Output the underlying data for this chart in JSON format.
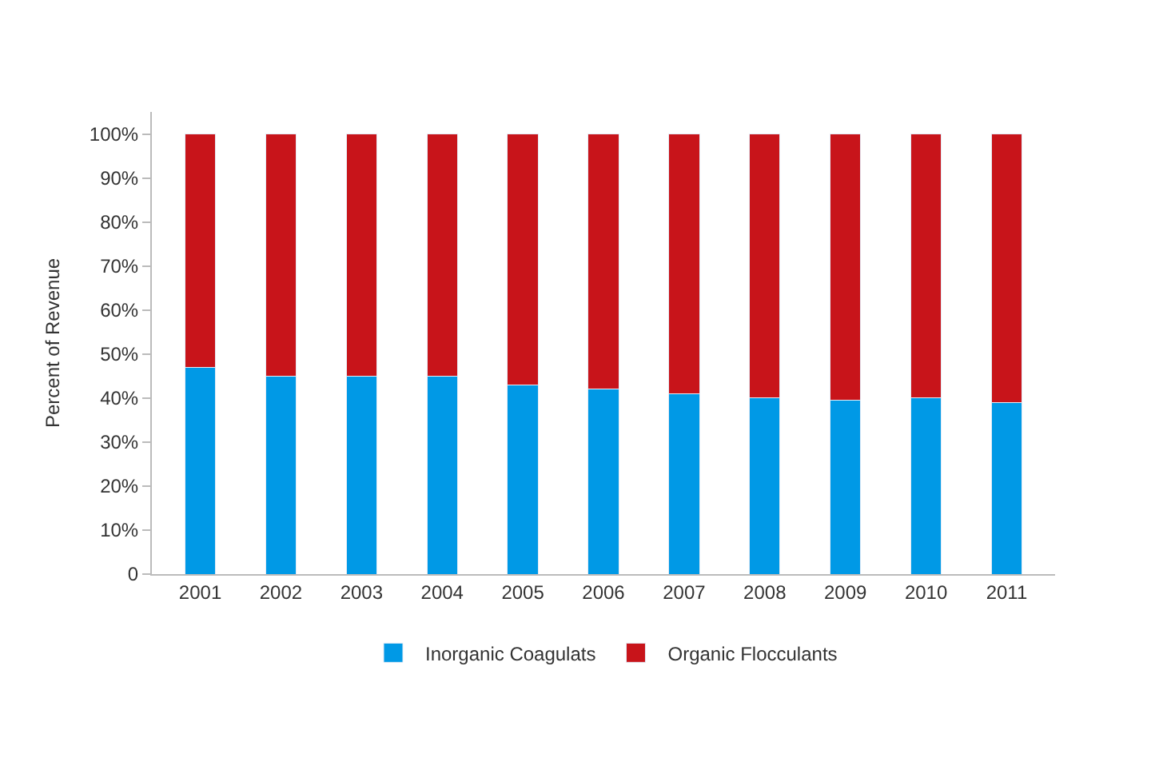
{
  "chart_data": {
    "type": "bar",
    "stacked": true,
    "ylabel": "Percent of Revenue",
    "categories": [
      "2001",
      "2002",
      "2003",
      "2004",
      "2005",
      "2006",
      "2007",
      "2008",
      "2009",
      "2010",
      "2011"
    ],
    "series": [
      {
        "name": "Inorganic Coagulats",
        "color": "#0099e6",
        "values": [
          47,
          45,
          45,
          45,
          43,
          42,
          41,
          40,
          39.5,
          40,
          39
        ]
      },
      {
        "name": "Organic Flocculants",
        "color": "#c8141a",
        "values": [
          53,
          55,
          55,
          55,
          57,
          58,
          59,
          60,
          60.5,
          60,
          61
        ]
      }
    ],
    "ylim": [
      0,
      105
    ],
    "yticks": [
      {
        "value": 0,
        "label": "0"
      },
      {
        "value": 10,
        "label": "10%"
      },
      {
        "value": 20,
        "label": "20%"
      },
      {
        "value": 30,
        "label": "30%"
      },
      {
        "value": 40,
        "label": "40%"
      },
      {
        "value": 50,
        "label": "50%"
      },
      {
        "value": 60,
        "label": "60%"
      },
      {
        "value": 70,
        "label": "70%"
      },
      {
        "value": 80,
        "label": "80%"
      },
      {
        "value": 90,
        "label": "90%"
      },
      {
        "value": 100,
        "label": "100%"
      }
    ],
    "legend": "bottom"
  }
}
